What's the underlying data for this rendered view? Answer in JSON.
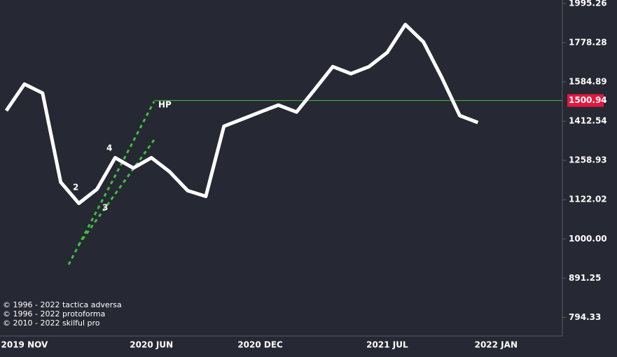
{
  "chart_data": {
    "type": "line",
    "log_scale": true,
    "categories": [
      null,
      "2019 NOV",
      null,
      null,
      null,
      null,
      null,
      null,
      "2020 JUN",
      null,
      null,
      null,
      null,
      null,
      "2020 DEC",
      null,
      null,
      null,
      null,
      null,
      null,
      "2021 JUL",
      null,
      null,
      null,
      null,
      null,
      "2022 JAN",
      null,
      null,
      null
    ],
    "series": [
      {
        "color": "#ffffff",
        "values": [
          1457,
          1575,
          1534,
          1181,
          1110,
          1157,
          1269,
          1231,
          1269,
          1218,
          1152,
          1133,
          1392,
          1421,
          1451,
          1481,
          1451,
          1550,
          1658,
          1624,
          1658,
          1728,
          1876,
          1782,
          1607,
          1436,
          1407,
          null,
          null,
          null,
          null
        ]
      }
    ],
    "ylim": [
      752,
      2016
    ],
    "yticks": [
      794.33,
      891.25,
      {
        "value": 1000,
        "label": "1000.00"
      },
      1122.02,
      1258.93,
      1412.54,
      1584.89,
      1778.28,
      1995.26
    ],
    "price_level": {
      "value": 1500.94,
      "label": "HP",
      "color": "#3fbf3f",
      "marker_color": "#e8173f"
    },
    "annotations": [
      "2",
      "3",
      "4",
      "HP"
    ],
    "copyright": [
      "© 1996 - 2022 tactica adversa",
      "© 1996 - 2022 protoforma",
      "© 2010 - 2022 skilful pro"
    ]
  }
}
